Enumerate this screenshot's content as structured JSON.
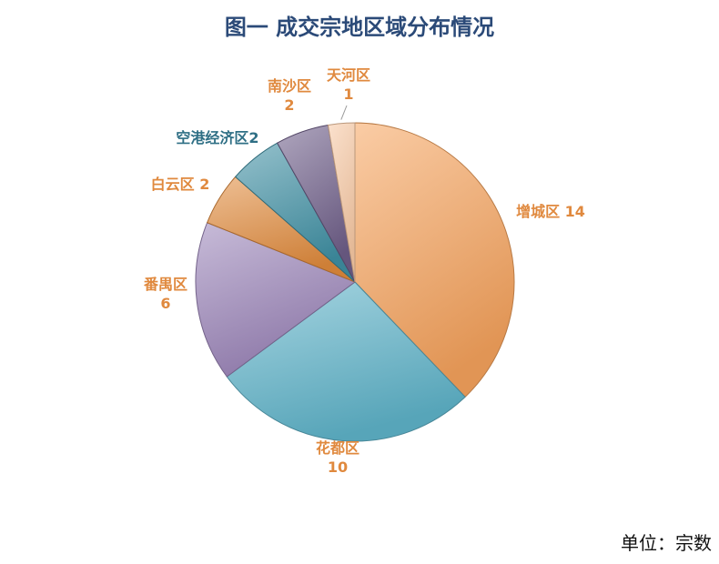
{
  "chart_data": {
    "type": "pie",
    "title": "图一 成交宗地区域分布情况",
    "unit_label": "单位：宗数",
    "slices": [
      {
        "label": "增城区",
        "value": 14,
        "color": "#f5a25c",
        "label_color": "#e0893e"
      },
      {
        "label": "花都区",
        "value": 10,
        "color": "#5fb3c9",
        "label_color": "#e0893e"
      },
      {
        "label": "番禺区",
        "value": 6,
        "color": "#9a84b8",
        "label_color": "#e0893e"
      },
      {
        "label": "白云区",
        "value": 2,
        "color": "#e08a3c",
        "label_color": "#e0893e"
      },
      {
        "label": "空港经济区",
        "value": 2,
        "color": "#3f8fa3",
        "label_color": "#2f6f85"
      },
      {
        "label": "南沙区",
        "value": 2,
        "color": "#6e5d88",
        "label_color": "#e0893e"
      },
      {
        "label": "天河区",
        "value": 1,
        "color": "#f8c9a4",
        "label_color": "#e0893e"
      }
    ]
  }
}
